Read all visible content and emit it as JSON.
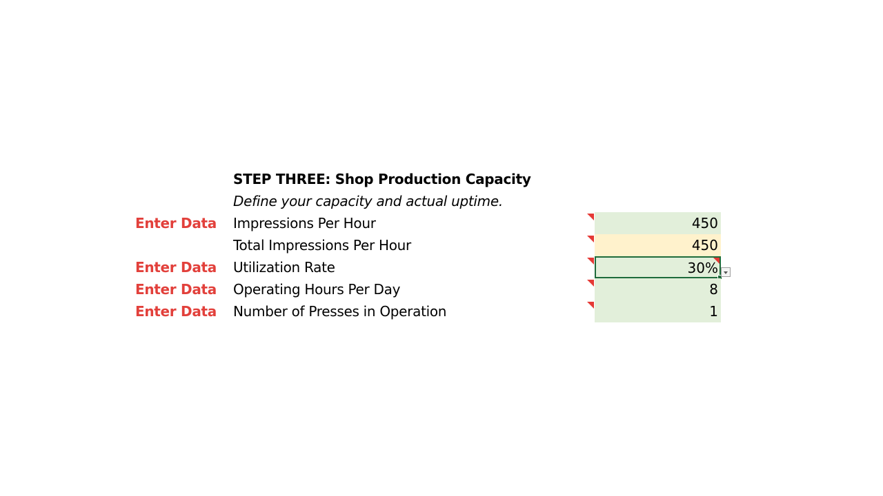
{
  "section": {
    "title": "STEP THREE: Shop Production Capacity",
    "subtitle": "Define your capacity and actual uptime."
  },
  "colors": {
    "enter_data_text": "#e2403b",
    "input_fill": "#e2efda",
    "calculated_fill": "#fff2cc",
    "selection_border": "#1e6b3b",
    "comment_marker": "#e53935"
  },
  "rows": [
    {
      "enter_label": "Enter Data",
      "label": "Impressions Per Hour",
      "value": "450"
    },
    {
      "enter_label": "",
      "label": "Total Impressions Per Hour",
      "value": "450"
    },
    {
      "enter_label": "Enter Data",
      "label": "Utilization Rate",
      "value": "30%"
    },
    {
      "enter_label": "Enter Data",
      "label": "Operating Hours Per Day",
      "value": "8"
    },
    {
      "enter_label": "Enter Data",
      "label": "Number of Presses in Operation",
      "value": "1"
    }
  ]
}
